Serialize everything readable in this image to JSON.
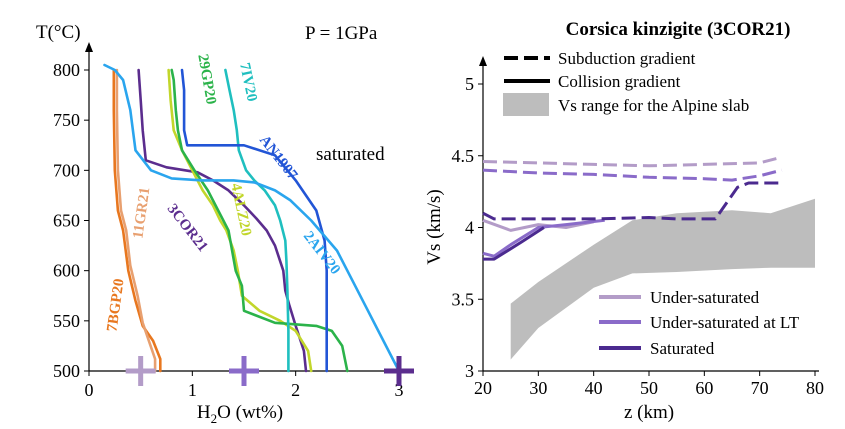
{
  "colors": {
    "7BGP20": "#e8771f",
    "11GR21": "#e8a070",
    "3COR21": "#5b2d8e",
    "4ALZ20": "#c2d62b",
    "29GP20": "#2bb34a",
    "7IV20": "#1fbfbf",
    "AN1907": "#2255d6",
    "2AIV20": "#2aa5ee",
    "under_saturated": "#b39cc8",
    "under_saturated_lt": "#8a6bc9",
    "saturated": "#4b2a8f",
    "band": "#bdbdbd",
    "marker_light": "#b39cc8",
    "marker_mid": "#8a6bc9",
    "marker_dark": "#5b2d8e"
  },
  "chart_data": [
    {
      "type": "line",
      "title": "",
      "annotations": [
        "P = 1GPa",
        "saturated"
      ],
      "xlabel": "H2O (wt%)",
      "xlabel_main": "H",
      "xlabel_sub": "2",
      "xlabel_rest": "O (wt%)",
      "ylabel": "T(°C)",
      "xlim": [
        0,
        3
      ],
      "ylim": [
        500,
        800
      ],
      "xticks": [
        0,
        1,
        2,
        3
      ],
      "xtick_labels": [
        "0",
        "1",
        "2",
        "3"
      ],
      "yticks": [
        500,
        550,
        600,
        650,
        700,
        750,
        800
      ],
      "ytick_labels": [
        "500",
        "550",
        "600",
        "650",
        "700",
        "750",
        "800"
      ],
      "series": [
        {
          "name": "7BGP20",
          "color_key": "7BGP20",
          "x": [
            0.69,
            0.69,
            0.62,
            0.52,
            0.45,
            0.38,
            0.33,
            0.28,
            0.25,
            0.24,
            0.24
          ],
          "y": [
            500,
            512,
            530,
            545,
            570,
            600,
            640,
            660,
            700,
            760,
            800
          ]
        },
        {
          "name": "11GR21",
          "color_key": "11GR21",
          "x": [
            0.64,
            0.64,
            0.58,
            0.52,
            0.47,
            0.4,
            0.36,
            0.31,
            0.28,
            0.27,
            0.27
          ],
          "y": [
            500,
            512,
            530,
            548,
            575,
            605,
            640,
            660,
            700,
            760,
            800
          ]
        },
        {
          "name": "3COR21",
          "color_key": "3COR21",
          "x": [
            2.1,
            2.08,
            2.0,
            1.94,
            1.9,
            1.88,
            1.8,
            1.72,
            1.62,
            1.5,
            1.35,
            1.2,
            1.05,
            0.75,
            0.55,
            0.52,
            0.5,
            0.48
          ],
          "y": [
            500,
            520,
            545,
            565,
            580,
            600,
            625,
            640,
            652,
            665,
            680,
            690,
            698,
            703,
            710,
            740,
            770,
            800
          ]
        },
        {
          "name": "4ALZ20",
          "color_key": "4ALZ20",
          "x": [
            2.15,
            2.12,
            2.0,
            1.85,
            1.65,
            1.48,
            1.44,
            1.4,
            1.33,
            1.27,
            1.2,
            1.1,
            1.0,
            0.9,
            0.82,
            0.79,
            0.77
          ],
          "y": [
            500,
            520,
            540,
            550,
            560,
            575,
            600,
            620,
            640,
            650,
            665,
            680,
            700,
            720,
            740,
            770,
            800
          ]
        },
        {
          "name": "29GP20",
          "color_key": "29GP20",
          "x": [
            2.5,
            2.45,
            2.35,
            2.2,
            1.8,
            1.5,
            1.48,
            1.42,
            1.35,
            1.25,
            1.15,
            1.02,
            0.9,
            0.86,
            0.84,
            0.82,
            0.8
          ],
          "y": [
            500,
            525,
            540,
            545,
            548,
            560,
            585,
            600,
            640,
            660,
            680,
            700,
            720,
            740,
            760,
            790,
            800
          ]
        },
        {
          "name": "7IV20",
          "color_key": "7IV20",
          "x": [
            1.93,
            1.93,
            1.92,
            1.91,
            1.9,
            1.85,
            1.8,
            1.7,
            1.6,
            1.52,
            1.45,
            1.43,
            1.4,
            1.36,
            1.32
          ],
          "y": [
            500,
            540,
            580,
            610,
            630,
            650,
            665,
            680,
            690,
            700,
            720,
            740,
            760,
            780,
            800
          ]
        },
        {
          "name": "AN1907",
          "color_key": "AN1907",
          "x": [
            2.3,
            2.3,
            2.3,
            2.28,
            2.2,
            2.0,
            1.8,
            1.5,
            1.2,
            0.95,
            0.92,
            0.92,
            0.92,
            0.9
          ],
          "y": [
            500,
            550,
            600,
            630,
            660,
            690,
            715,
            725,
            725,
            725,
            740,
            760,
            780,
            800
          ]
        },
        {
          "name": "2AIV20",
          "color_key": "2AIV20",
          "x": [
            3.0,
            2.95,
            2.8,
            2.7,
            2.55,
            2.4,
            2.15,
            1.95,
            1.8,
            1.6,
            1.4,
            1.1,
            0.8,
            0.6,
            0.45,
            0.4,
            0.33,
            0.25,
            0.15
          ],
          "y": [
            500,
            510,
            540,
            560,
            590,
            620,
            650,
            670,
            680,
            688,
            690,
            690,
            692,
            700,
            720,
            760,
            790,
            800,
            805
          ]
        }
      ],
      "curve_labels": [
        {
          "series": "7BGP20",
          "text": "7BGP20",
          "x": 0.3,
          "y": 565,
          "angle": -82
        },
        {
          "series": "11GR21",
          "text": "11GR21",
          "x": 0.55,
          "y": 657,
          "angle": -82
        },
        {
          "series": "3COR21",
          "text": "3COR21",
          "x": 0.92,
          "y": 640,
          "angle": 52
        },
        {
          "series": "4ALZ20",
          "text": "4ALZ20",
          "x": 1.43,
          "y": 660,
          "angle": 78
        },
        {
          "series": "29GP20",
          "text": "29GP20",
          "x": 1.1,
          "y": 790,
          "angle": 80
        },
        {
          "series": "7IV20",
          "text": "7IV20",
          "x": 1.5,
          "y": 787,
          "angle": 78
        },
        {
          "series": "AN1907",
          "text": "AN1907",
          "x": 1.8,
          "y": 710,
          "angle": 52
        },
        {
          "series": "2AIV20",
          "text": "2AIV20",
          "x": 2.22,
          "y": 615,
          "angle": 52
        }
      ],
      "markers": [
        {
          "x": 0.5,
          "y": 500,
          "color_key": "marker_light"
        },
        {
          "x": 1.5,
          "y": 500,
          "color_key": "marker_mid"
        },
        {
          "x": 3.0,
          "y": 500,
          "color_key": "marker_dark"
        }
      ]
    },
    {
      "type": "line",
      "title": "Corsica kinzigite (3COR21)",
      "xlabel": "z (km)",
      "ylabel": "Vs (km/s)",
      "xlim": [
        20,
        80
      ],
      "ylim": [
        3,
        5
      ],
      "xticks": [
        20,
        30,
        40,
        50,
        60,
        70,
        80
      ],
      "xtick_labels": [
        "20",
        "30",
        "40",
        "50",
        "60",
        "70",
        "80"
      ],
      "yticks": [
        3,
        3.5,
        4,
        4.5,
        5
      ],
      "ytick_labels": [
        "3",
        "3.5",
        "4",
        "4.5",
        "5"
      ],
      "band": {
        "name": "Vs range for the Alpine slab",
        "upper": {
          "x": [
            25,
            30,
            40,
            47,
            55,
            65,
            72,
            80
          ],
          "y": [
            3.47,
            3.62,
            3.88,
            4.05,
            4.1,
            4.12,
            4.1,
            4.2
          ]
        },
        "lower": {
          "x": [
            25,
            30,
            40,
            47,
            55,
            65,
            72,
            80
          ],
          "y": [
            3.08,
            3.3,
            3.58,
            3.68,
            3.69,
            3.71,
            3.72,
            3.72
          ]
        }
      },
      "line_styles": [
        {
          "name": "Subduction gradient",
          "dash": true
        },
        {
          "name": "Collision gradient",
          "dash": false
        }
      ],
      "series": [
        {
          "name": "Under-saturated",
          "color_key": "under_saturated",
          "dashed": {
            "x": [
              20,
              30,
              40,
              50,
              60,
              70,
              74
            ],
            "y": [
              4.46,
              4.45,
              4.44,
              4.43,
              4.44,
              4.45,
              4.49
            ]
          },
          "solid": {
            "x": [
              20,
              25,
              30,
              35,
              40
            ],
            "y": [
              4.05,
              3.98,
              4.02,
              4.0,
              4.04
            ]
          }
        },
        {
          "name": "Under-saturated at LT",
          "color_key": "under_saturated_lt",
          "dashed": {
            "x": [
              20,
              30,
              40,
              50,
              60,
              65,
              70,
              74
            ],
            "y": [
              4.4,
              4.38,
              4.37,
              4.35,
              4.34,
              4.33,
              4.36,
              4.4
            ]
          },
          "solid": {
            "x": [
              20,
              22,
              25,
              30,
              35,
              42
            ],
            "y": [
              3.82,
              3.8,
              3.88,
              4.0,
              4.02,
              4.05
            ]
          }
        },
        {
          "name": "Saturated",
          "color_key": "saturated",
          "dashed": {
            "x": [
              20,
              22,
              30,
              40,
              50,
              55,
              60,
              62,
              66,
              68,
              70,
              74
            ],
            "y": [
              4.1,
              4.06,
              4.06,
              4.06,
              4.07,
              4.06,
              4.06,
              4.06,
              4.28,
              4.31,
              4.31,
              4.31
            ]
          },
          "solid": {
            "x": [
              20,
              22,
              27,
              31
            ],
            "y": [
              3.78,
              3.78,
              3.9,
              4.0
            ]
          }
        }
      ]
    }
  ]
}
